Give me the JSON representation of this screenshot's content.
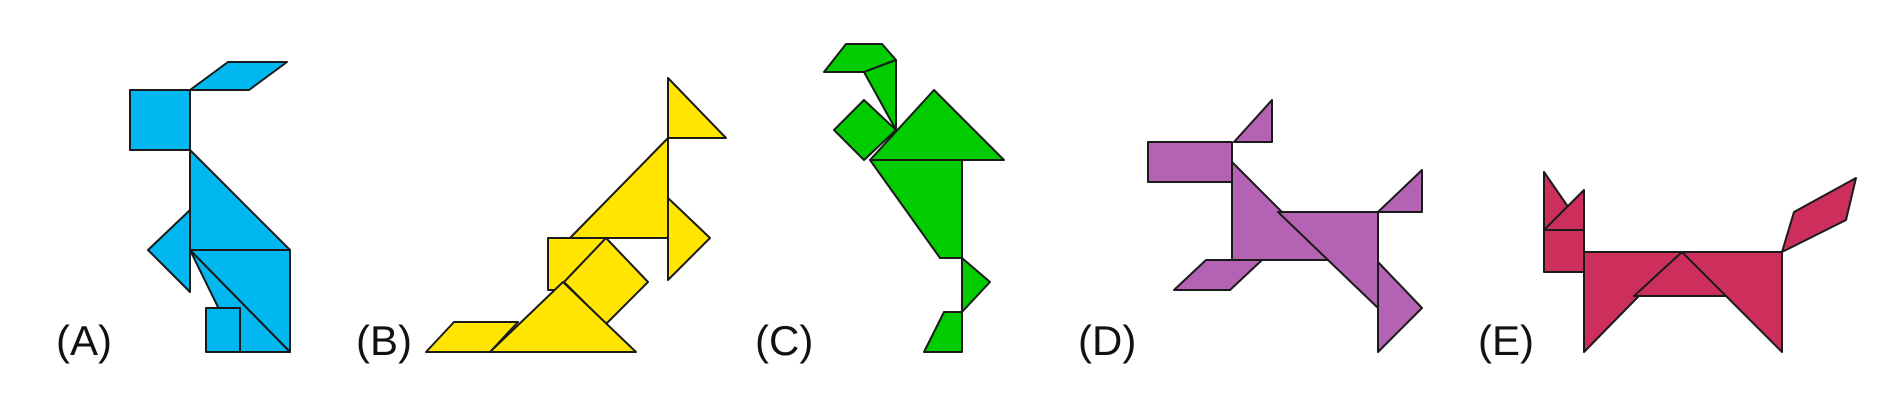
{
  "figures": [
    {
      "id": "A",
      "label": "(A)",
      "color": "#00B7EF",
      "animal": "rabbit"
    },
    {
      "id": "B",
      "label": "(B)",
      "color": "#FFE500",
      "animal": "kangaroo"
    },
    {
      "id": "C",
      "label": "(C)",
      "color": "#00CC00",
      "animal": "bird"
    },
    {
      "id": "D",
      "label": "(D)",
      "color": "#B462B4",
      "animal": "deer"
    },
    {
      "id": "E",
      "label": "(E)",
      "color": "#CC2F5C",
      "animal": "fox"
    }
  ]
}
